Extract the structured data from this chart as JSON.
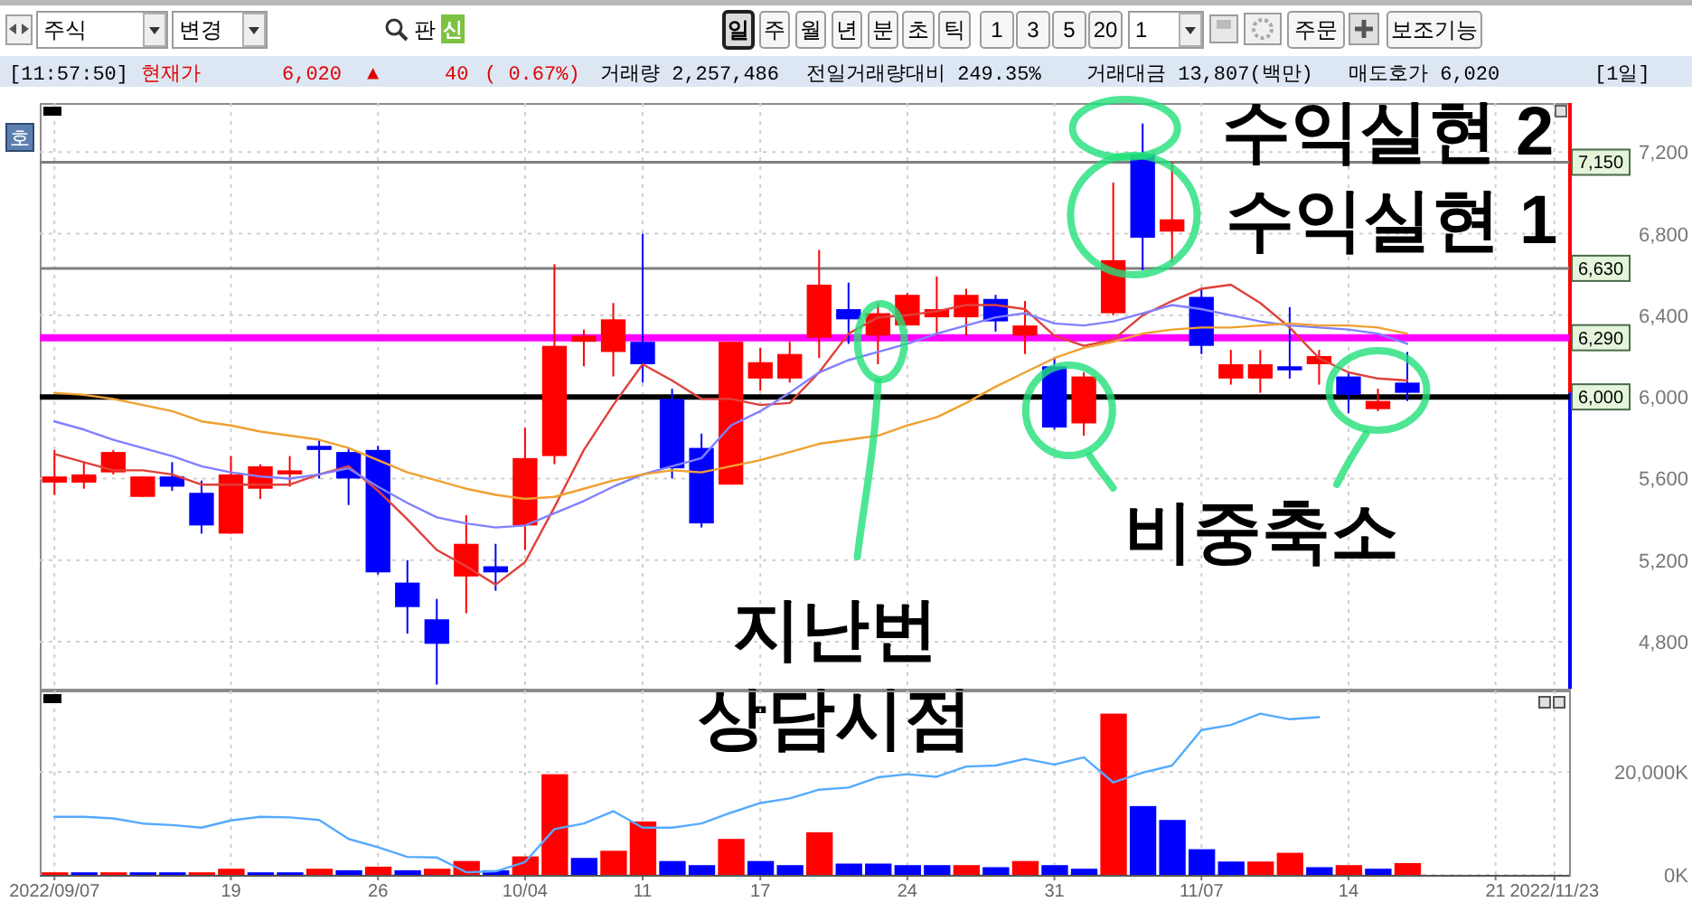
{
  "chart_data": [
    {
      "type": "other",
      "annotations": [
        "주식",
        "변경",
        "판",
        "신",
        "일",
        "주",
        "월",
        "년",
        "분",
        "초",
        "틱",
        "1",
        "3",
        "5",
        "20",
        "1",
        "주문",
        "보조기능"
      ]
    },
    {
      "type": "other",
      "annotations": [
        "[11:57:50]",
        "현재가",
        "6,020",
        "▲",
        "40",
        "( 0.67%)",
        "거래량 2,257,486",
        "전일거래량대비 249.35%",
        "거래대금 13,807(백만)",
        "매도호가 6,020",
        "[1일]"
      ]
    },
    {
      "type": "candlestick",
      "categories": [
        null,
        null,
        null,
        null,
        null,
        null,
        null,
        null,
        null,
        null,
        null,
        null,
        null,
        null,
        null,
        null,
        null,
        null,
        null,
        null,
        null,
        null,
        null,
        null,
        null,
        null,
        null,
        null,
        null,
        null,
        null,
        null,
        null,
        null,
        null,
        null,
        null,
        null,
        null,
        null,
        null,
        null,
        null,
        null,
        null,
        null,
        null,
        null,
        null,
        null,
        null,
        null
      ],
      "ohlc": [
        [
          5580,
          5740,
          5520,
          5610
        ],
        [
          5580,
          5680,
          5550,
          5620
        ],
        [
          5630,
          5740,
          5620,
          5730
        ],
        [
          5510,
          5610,
          5510,
          5610
        ],
        [
          5610,
          5680,
          5540,
          5560
        ],
        [
          5530,
          5590,
          5330,
          5370
        ],
        [
          5330,
          5710,
          5330,
          5620
        ],
        [
          5550,
          5670,
          5500,
          5660
        ],
        [
          5620,
          5710,
          5560,
          5640
        ],
        [
          5760,
          5790,
          5600,
          5740
        ],
        [
          5730,
          5750,
          5470,
          5600
        ],
        [
          5740,
          5760,
          5130,
          5140
        ],
        [
          5090,
          5200,
          4840,
          4970
        ],
        [
          4910,
          5010,
          4590,
          4790
        ],
        [
          5120,
          5420,
          4940,
          5280
        ],
        [
          5170,
          5280,
          5050,
          5140
        ],
        [
          5370,
          5850,
          5250,
          5700
        ],
        [
          5710,
          6650,
          5670,
          6250
        ],
        [
          6270,
          6330,
          6150,
          6300
        ],
        [
          6220,
          6460,
          6100,
          6380
        ],
        [
          6270,
          6800,
          6070,
          6160
        ],
        [
          5990,
          6040,
          5600,
          5650
        ],
        [
          5750,
          5820,
          5360,
          5380
        ],
        [
          5570,
          6270,
          5570,
          6270
        ],
        [
          6090,
          6240,
          6030,
          6170
        ],
        [
          6090,
          6270,
          6070,
          6210
        ],
        [
          6290,
          6720,
          6190,
          6550
        ],
        [
          6430,
          6560,
          6260,
          6380
        ],
        [
          6300,
          6460,
          6160,
          6410
        ],
        [
          6350,
          6510,
          6350,
          6500
        ],
        [
          6390,
          6590,
          6300,
          6430
        ],
        [
          6390,
          6530,
          6300,
          6500
        ],
        [
          6480,
          6500,
          6320,
          6370
        ],
        [
          6300,
          6470,
          6210,
          6350
        ],
        [
          6150,
          6190,
          5840,
          5850
        ],
        [
          5870,
          6120,
          5810,
          6100
        ],
        [
          6410,
          7050,
          6400,
          6670
        ],
        [
          7190,
          7340,
          6620,
          6780
        ],
        [
          6810,
          7150,
          6660,
          6870
        ],
        [
          6490,
          6530,
          6210,
          6250
        ],
        [
          6090,
          6230,
          6060,
          6160
        ],
        [
          6090,
          6230,
          6020,
          6160
        ],
        [
          6150,
          6440,
          6090,
          6130
        ],
        [
          6160,
          6230,
          6060,
          6200
        ],
        [
          6100,
          6120,
          5920,
          6010
        ],
        [
          5940,
          6040,
          5930,
          5980
        ],
        [
          6070,
          6220,
          5980,
          6020
        ],
        null,
        null,
        null,
        null,
        null
      ],
      "colors": [
        "#ff0000",
        "#ff0000",
        "#ff0000",
        "#ff0000",
        "#0000ff",
        "#0000ff",
        "#ff0000",
        "#ff0000",
        "#ff0000",
        "#0000ff",
        "#0000ff",
        "#0000ff",
        "#0000ff",
        "#0000ff",
        "#ff0000",
        "#0000ff",
        "#ff0000",
        "#ff0000",
        "#ff0000",
        "#ff0000",
        "#0000ff",
        "#0000ff",
        "#0000ff",
        "#ff0000",
        "#ff0000",
        "#ff0000",
        "#ff0000",
        "#0000ff",
        "#ff0000",
        "#ff0000",
        "#ff0000",
        "#ff0000",
        "#0000ff",
        "#ff0000",
        "#0000ff",
        "#ff0000",
        "#ff0000",
        "#0000ff",
        "#ff0000",
        "#0000ff",
        "#ff0000",
        "#ff0000",
        "#0000ff",
        "#ff0000",
        "#0000ff",
        "#ff0000",
        "#0000ff",
        null,
        null,
        null,
        null,
        null
      ],
      "series": [
        {
          "type": "line",
          "color": "#e0403a",
          "values": [
            5720,
            5680,
            5640,
            5640,
            5620,
            5570,
            5570,
            5570,
            5570,
            5620,
            5660,
            5540,
            5400,
            5250,
            5170,
            5080,
            5190,
            5460,
            5740,
            5960,
            6160,
            6080,
            5990,
            5990,
            5960,
            5970,
            6120,
            6310,
            6390,
            6400,
            6420,
            6450,
            6450,
            6430,
            6300,
            6250,
            6280,
            6400,
            6470,
            6530,
            6550,
            6460,
            6340,
            6190,
            6120,
            6090,
            6080,
            null,
            null,
            null,
            null,
            null
          ]
        },
        {
          "type": "line",
          "color": "#8080ff",
          "values": [
            5880,
            5840,
            5790,
            5750,
            5710,
            5660,
            5630,
            5610,
            5600,
            5620,
            5650,
            5560,
            5480,
            5410,
            5380,
            5360,
            5370,
            5430,
            5490,
            5560,
            5620,
            5660,
            5700,
            5860,
            5930,
            6020,
            6120,
            6180,
            6220,
            6260,
            6310,
            6350,
            6390,
            6410,
            6360,
            6350,
            6370,
            6410,
            6450,
            6430,
            6400,
            6370,
            6350,
            6340,
            6330,
            6310,
            6260,
            null,
            null,
            null,
            null,
            null
          ]
        },
        {
          "type": "line",
          "color": "#f0a030",
          "values": [
            6020,
            6010,
            5990,
            5960,
            5930,
            5880,
            5860,
            5830,
            5810,
            5790,
            5750,
            5690,
            5630,
            5590,
            5550,
            5520,
            5500,
            5510,
            5550,
            5590,
            5620,
            5640,
            5630,
            5660,
            5690,
            5730,
            5770,
            5790,
            5810,
            5860,
            5900,
            5970,
            6050,
            6120,
            6190,
            6240,
            6270,
            6310,
            6330,
            6340,
            6340,
            6350,
            6360,
            6350,
            6350,
            6340,
            6310,
            null,
            null,
            null,
            null,
            null
          ]
        }
      ],
      "ylim": [
        4570,
        7440
      ],
      "yticks": [
        {
          "value": 4800,
          "label": "4,800"
        },
        {
          "value": 5200,
          "label": "5,200"
        },
        {
          "value": 5600,
          "label": "5,600"
        },
        {
          "value": 6000,
          "label": "6,000"
        },
        {
          "value": 6400,
          "label": "6,400"
        },
        {
          "value": 6800,
          "label": "6,800"
        },
        {
          "value": 7200,
          "label": "7,200"
        }
      ],
      "ref_lines": [
        {
          "axis": "y",
          "value": 7150,
          "label": "7,150",
          "color": "#808080"
        },
        {
          "axis": "y",
          "value": 6630,
          "label": "6,630",
          "color": "#808080"
        },
        {
          "axis": "y",
          "value": 6290,
          "label": "6,290",
          "color": "#ff00ff"
        },
        {
          "axis": "y",
          "value": 6000,
          "label": "6,000",
          "color": "#000000"
        }
      ],
      "annotations": [
        "호",
        {
          "text": "수익실현 2",
          "y": 7150
        },
        {
          "text": "수익실현 1",
          "y": 6630
        },
        "비중축소",
        "지난번\n상담시점"
      ],
      "grid": true,
      "tick_labels": "y"
    },
    {
      "type": "bar",
      "categories": [
        "2022/09/07",
        null,
        null,
        null,
        null,
        null,
        "19",
        null,
        null,
        null,
        null,
        "26",
        null,
        null,
        null,
        null,
        "10/04",
        null,
        null,
        null,
        "11",
        null,
        null,
        null,
        "17",
        null,
        null,
        null,
        null,
        "24",
        null,
        null,
        null,
        null,
        "31",
        null,
        null,
        null,
        null,
        "11/07",
        null,
        null,
        null,
        null,
        "14",
        null,
        null,
        null,
        null,
        "21",
        null,
        "2022/11/23"
      ],
      "series": [
        {
          "type": "bar",
          "values": [
            500,
            500,
            500,
            500,
            500,
            500,
            1200,
            500,
            500,
            1200,
            900,
            1600,
            900,
            1200,
            2700,
            900,
            3600,
            19600,
            3300,
            4700,
            10400,
            2700,
            1900,
            7000,
            2700,
            1900,
            8300,
            2200,
            2200,
            1900,
            1900,
            1900,
            1500,
            2700,
            1900,
            1200,
            31400,
            13400,
            10700,
            5000,
            2600,
            2600,
            4300,
            1500,
            1900,
            1200,
            2300,
            null,
            null,
            null,
            null,
            null
          ],
          "colors": [
            "#ff0000",
            "#0000ff",
            "#ff0000",
            "#0000ff",
            "#0000ff",
            "#ff0000",
            "#ff0000",
            "#0000ff",
            "#0000ff",
            "#ff0000",
            "#0000ff",
            "#ff0000",
            "#0000ff",
            "#ff0000",
            "#ff0000",
            "#0000ff",
            "#ff0000",
            "#ff0000",
            "#0000ff",
            "#ff0000",
            "#ff0000",
            "#0000ff",
            "#0000ff",
            "#ff0000",
            "#0000ff",
            "#0000ff",
            "#ff0000",
            "#0000ff",
            "#0000ff",
            "#0000ff",
            "#0000ff",
            "#ff0000",
            "#0000ff",
            "#ff0000",
            "#0000ff",
            "#0000ff",
            "#ff0000",
            "#0000ff",
            "#0000ff",
            "#0000ff",
            "#0000ff",
            "#ff0000",
            "#ff0000",
            "#0000ff",
            "#ff0000",
            "#0000ff",
            "#ff0000",
            null,
            null,
            null,
            null,
            null
          ]
        },
        {
          "type": "line",
          "color": "#55aaff",
          "values": [
            11300,
            11300,
            11000,
            10000,
            9700,
            9200,
            10600,
            11300,
            11200,
            10700,
            7000,
            5400,
            3500,
            3400,
            500,
            700,
            2500,
            8900,
            10000,
            12400,
            9200,
            9200,
            10000,
            12100,
            14000,
            14900,
            16600,
            17000,
            19000,
            19600,
            19100,
            21100,
            21300,
            22600,
            21500,
            22900,
            18000,
            19900,
            21300,
            28200,
            29200,
            31400,
            30300,
            30700,
            null,
            null,
            null,
            null,
            null,
            null,
            null,
            null
          ]
        }
      ],
      "ylim": [
        0,
        35900
      ],
      "yticks": [
        {
          "value": 0,
          "label": "0K"
        },
        {
          "value": 20000,
          "label": "20,000K"
        }
      ],
      "grid": true
    }
  ]
}
